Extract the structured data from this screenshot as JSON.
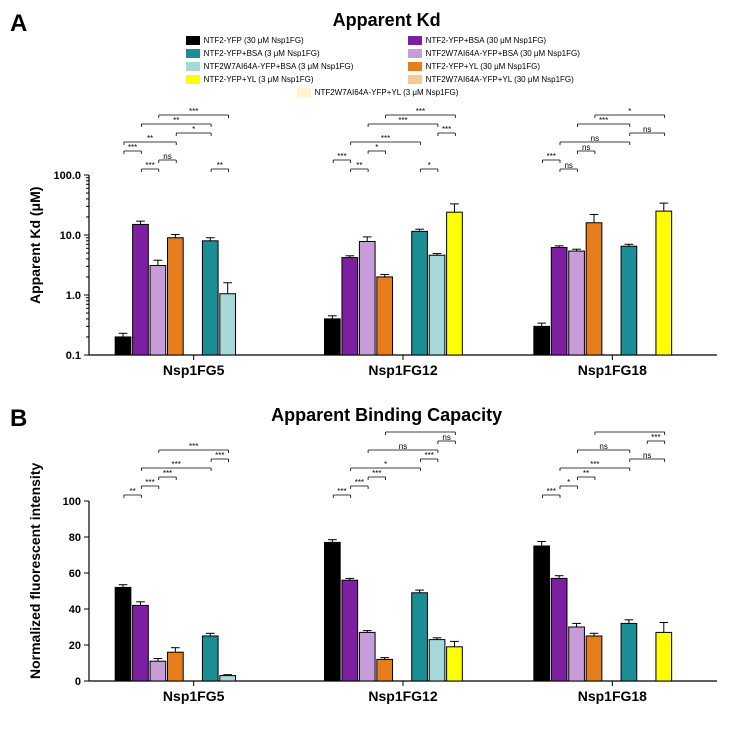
{
  "colors": {
    "s1": "#000000",
    "s2": "#7c1fa0",
    "s3": "#c89bd9",
    "s4": "#e77c1c",
    "s5": "#f6c99a",
    "s6": "#1a8e94",
    "s7": "#a6d8da",
    "s8": "#ffff00",
    "s9": "#fff3cc",
    "background": "#ffffff"
  },
  "legend": [
    {
      "key": "s1",
      "label": "NTF2-YFP (30 μM Nsp1FG)"
    },
    {
      "key": "s2",
      "label": "NTF2-YFP+BSA (30 μM Nsp1FG)"
    },
    {
      "key": "s6",
      "label": "NTF2-YFP+BSA (3 μM Nsp1FG)"
    },
    {
      "key": "s3",
      "label": "NTF2W7AI64A-YFP+BSA (30 μM Nsp1FG)"
    },
    {
      "key": "s7",
      "label": "NTF2W7AI64A-YFP+BSA (3 μM Nsp1FG)"
    },
    {
      "key": "s4",
      "label": "NTF2-YFP+YL (30 μM Nsp1FG)"
    },
    {
      "key": "s8",
      "label": "NTF2-YFP+YL (3 μM Nsp1FG)"
    },
    {
      "key": "s5",
      "label": "NTF2W7AI64A-YFP+YL (30 μM Nsp1FG)"
    },
    {
      "key": "s9",
      "label": "NTF2W7AI64A-YFP+YL (3 μM Nsp1FG)"
    }
  ],
  "panelA": {
    "label": "A",
    "title": "Apparent Kd",
    "ylabel": "Apparent Kd (μM)",
    "ylim": [
      0.1,
      100
    ],
    "scale": "log",
    "yticks": [
      0.1,
      1.0,
      10.0,
      100.0
    ],
    "ytick_labels": [
      "0.1",
      "1.0",
      "10.0",
      "100.0"
    ],
    "categories": [
      "Nsp1FG5",
      "Nsp1FG12",
      "Nsp1FG18"
    ],
    "bar_order": [
      "s1",
      "s2",
      "s3",
      "s4",
      "s5",
      "s6",
      "s7",
      "s8",
      "s9"
    ],
    "data": {
      "Nsp1FG5": {
        "s1": {
          "v": 0.2,
          "e": 0.03
        },
        "s2": {
          "v": 15.0,
          "e": 2.0
        },
        "s3": {
          "v": 3.1,
          "e": 0.7
        },
        "s4": {
          "v": 9.0,
          "e": 1.2
        },
        "s6": {
          "v": 8.0,
          "e": 1.0
        },
        "s7": {
          "v": 1.05,
          "e": 0.55
        }
      },
      "Nsp1FG12": {
        "s1": {
          "v": 0.4,
          "e": 0.05
        },
        "s2": {
          "v": 4.2,
          "e": 0.3
        },
        "s3": {
          "v": 7.8,
          "e": 1.5
        },
        "s4": {
          "v": 2.0,
          "e": 0.2
        },
        "s6": {
          "v": 11.5,
          "e": 1.0
        },
        "s7": {
          "v": 4.6,
          "e": 0.3
        },
        "s8": {
          "v": 24.0,
          "e": 9.0
        }
      },
      "Nsp1FG18": {
        "s1": {
          "v": 0.3,
          "e": 0.04
        },
        "s2": {
          "v": 6.2,
          "e": 0.4
        },
        "s3": {
          "v": 5.4,
          "e": 0.4
        },
        "s4": {
          "v": 16.0,
          "e": 6.0
        },
        "s6": {
          "v": 6.5,
          "e": 0.5
        },
        "s8": {
          "v": 25.0,
          "e": 9.0
        }
      }
    },
    "sig": {
      "Nsp1FG5": [
        {
          "from": 0,
          "to": 1,
          "txt": "***",
          "lvl": 2
        },
        {
          "from": 1,
          "to": 2,
          "txt": "***",
          "lvl": 0
        },
        {
          "from": 2,
          "to": 3,
          "txt": "ns",
          "lvl": 1
        },
        {
          "from": 0,
          "to": 3,
          "txt": "**",
          "lvl": 3
        },
        {
          "from": 3,
          "to": 5,
          "txt": "*",
          "lvl": 4
        },
        {
          "from": 1,
          "to": 5,
          "txt": "**",
          "lvl": 5
        },
        {
          "from": 5,
          "to": 6,
          "txt": "**",
          "lvl": 0
        },
        {
          "from": 2,
          "to": 6,
          "txt": "***",
          "lvl": 6
        }
      ],
      "Nsp1FG12": [
        {
          "from": 0,
          "to": 1,
          "txt": "***",
          "lvl": 1
        },
        {
          "from": 1,
          "to": 2,
          "txt": "**",
          "lvl": 0
        },
        {
          "from": 2,
          "to": 3,
          "txt": "*",
          "lvl": 2
        },
        {
          "from": 1,
          "to": 5,
          "txt": "***",
          "lvl": 3
        },
        {
          "from": 5,
          "to": 6,
          "txt": "*",
          "lvl": 0
        },
        {
          "from": 2,
          "to": 6,
          "txt": "***",
          "lvl": 5
        },
        {
          "from": 6,
          "to": 7,
          "txt": "***",
          "lvl": 4
        },
        {
          "from": 3,
          "to": 7,
          "txt": "***",
          "lvl": 6
        }
      ],
      "Nsp1FG18": [
        {
          "from": 0,
          "to": 1,
          "txt": "***",
          "lvl": 1
        },
        {
          "from": 1,
          "to": 2,
          "txt": "ns",
          "lvl": 0
        },
        {
          "from": 2,
          "to": 3,
          "txt": "ns",
          "lvl": 2
        },
        {
          "from": 1,
          "to": 5,
          "txt": "ns",
          "lvl": 3
        },
        {
          "from": 2,
          "to": 5,
          "txt": "***",
          "lvl": 5
        },
        {
          "from": 5,
          "to": 7,
          "txt": "ns",
          "lvl": 4
        },
        {
          "from": 3,
          "to": 7,
          "txt": "*",
          "lvl": 6
        }
      ]
    }
  },
  "panelB": {
    "label": "B",
    "title": "Apparent Binding Capacity",
    "ylabel": "Normalized fluorescent intensity",
    "ylim": [
      0,
      100
    ],
    "scale": "linear",
    "yticks": [
      0,
      20,
      40,
      60,
      80,
      100
    ],
    "ytick_labels": [
      "0",
      "20",
      "40",
      "60",
      "80",
      "100"
    ],
    "categories": [
      "Nsp1FG5",
      "Nsp1FG12",
      "Nsp1FG18"
    ],
    "bar_order": [
      "s1",
      "s2",
      "s3",
      "s4",
      "s5",
      "s6",
      "s7",
      "s8",
      "s9"
    ],
    "data": {
      "Nsp1FG5": {
        "s1": {
          "v": 52,
          "e": 1.5
        },
        "s2": {
          "v": 42,
          "e": 2
        },
        "s3": {
          "v": 11,
          "e": 1.5
        },
        "s4": {
          "v": 16,
          "e": 2.5
        },
        "s6": {
          "v": 25,
          "e": 1.5
        },
        "s7": {
          "v": 3,
          "e": 0.5
        }
      },
      "Nsp1FG12": {
        "s1": {
          "v": 77,
          "e": 1.5
        },
        "s2": {
          "v": 56,
          "e": 1
        },
        "s3": {
          "v": 27,
          "e": 1
        },
        "s4": {
          "v": 12,
          "e": 1
        },
        "s6": {
          "v": 49,
          "e": 1.5
        },
        "s7": {
          "v": 23,
          "e": 1
        },
        "s8": {
          "v": 19,
          "e": 3
        }
      },
      "Nsp1FG18": {
        "s1": {
          "v": 75,
          "e": 2.5
        },
        "s2": {
          "v": 57,
          "e": 1.5
        },
        "s3": {
          "v": 30,
          "e": 2
        },
        "s4": {
          "v": 25,
          "e": 1.5
        },
        "s6": {
          "v": 32,
          "e": 2
        },
        "s8": {
          "v": 27,
          "e": 5.5
        }
      }
    },
    "sig": {
      "Nsp1FG5": [
        {
          "from": 0,
          "to": 1,
          "txt": "**",
          "lvl": 0
        },
        {
          "from": 1,
          "to": 2,
          "txt": "***",
          "lvl": 1
        },
        {
          "from": 2,
          "to": 3,
          "txt": "***",
          "lvl": 2
        },
        {
          "from": 1,
          "to": 5,
          "txt": "***",
          "lvl": 3
        },
        {
          "from": 5,
          "to": 6,
          "txt": "***",
          "lvl": 4
        },
        {
          "from": 2,
          "to": 6,
          "txt": "***",
          "lvl": 5
        }
      ],
      "Nsp1FG12": [
        {
          "from": 0,
          "to": 1,
          "txt": "***",
          "lvl": 0
        },
        {
          "from": 1,
          "to": 2,
          "txt": "***",
          "lvl": 1
        },
        {
          "from": 2,
          "to": 3,
          "txt": "***",
          "lvl": 2
        },
        {
          "from": 1,
          "to": 5,
          "txt": "*",
          "lvl": 3
        },
        {
          "from": 5,
          "to": 6,
          "txt": "***",
          "lvl": 4
        },
        {
          "from": 2,
          "to": 6,
          "txt": "ns",
          "lvl": 5
        },
        {
          "from": 6,
          "to": 7,
          "txt": "ns",
          "lvl": 6
        },
        {
          "from": 3,
          "to": 7,
          "txt": "***",
          "lvl": 7
        }
      ],
      "Nsp1FG18": [
        {
          "from": 0,
          "to": 1,
          "txt": "***",
          "lvl": 0
        },
        {
          "from": 1,
          "to": 2,
          "txt": "*",
          "lvl": 1
        },
        {
          "from": 2,
          "to": 3,
          "txt": "**",
          "lvl": 2
        },
        {
          "from": 1,
          "to": 5,
          "txt": "***",
          "lvl": 3
        },
        {
          "from": 5,
          "to": 7,
          "txt": "ns",
          "lvl": 4
        },
        {
          "from": 2,
          "to": 5,
          "txt": "ns",
          "lvl": 5
        },
        {
          "from": 6,
          "to": 7,
          "txt": "***",
          "lvl": 6
        },
        {
          "from": 3,
          "to": 7,
          "txt": "ns",
          "lvl": 7
        }
      ]
    }
  }
}
